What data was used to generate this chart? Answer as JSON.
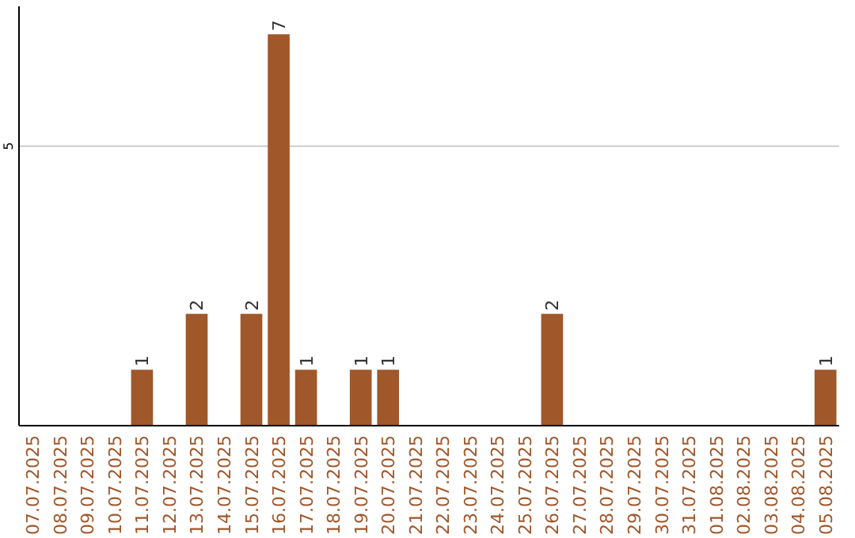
{
  "chart_data": {
    "type": "bar",
    "categories": [
      "07.07.2025",
      "08.07.2025",
      "09.07.2025",
      "10.07.2025",
      "11.07.2025",
      "12.07.2025",
      "13.07.2025",
      "14.07.2025",
      "15.07.2025",
      "16.07.2025",
      "17.07.2025",
      "18.07.2025",
      "19.07.2025",
      "20.07.2025",
      "21.07.2025",
      "22.07.2025",
      "23.07.2025",
      "24.07.2025",
      "25.07.2025",
      "26.07.2025",
      "27.07.2025",
      "28.07.2025",
      "29.07.2025",
      "30.07.2025",
      "31.07.2025",
      "01.08.2025",
      "02.08.2025",
      "03.08.2025",
      "04.08.2025",
      "05.08.2025"
    ],
    "values": [
      0,
      0,
      0,
      0,
      1,
      0,
      2,
      0,
      2,
      7,
      1,
      0,
      1,
      1,
      0,
      0,
      0,
      0,
      0,
      2,
      0,
      0,
      0,
      0,
      0,
      0,
      0,
      0,
      0,
      1
    ],
    "value_labels": [
      null,
      null,
      null,
      null,
      "1",
      null,
      "2",
      null,
      "2",
      "7",
      "1",
      null,
      "1",
      "1",
      null,
      null,
      null,
      null,
      null,
      "2",
      null,
      null,
      null,
      null,
      null,
      null,
      null,
      null,
      null,
      "1"
    ],
    "color": "#a0572a",
    "ylim": [
      0,
      7.5
    ],
    "yticks": [
      5
    ],
    "grid": "y"
  }
}
